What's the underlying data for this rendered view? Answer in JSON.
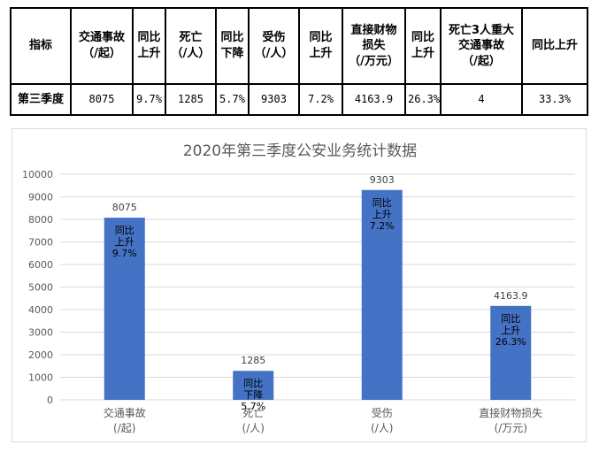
{
  "table": {
    "headers": [
      "指标",
      "交通事故\n（/起）",
      "同比\n上升",
      "死亡\n（/人）",
      "同比\n下降",
      "受伤\n（/人）",
      "同比\n上升",
      "直接财物\n损失\n（/万元）",
      "同比\n上升",
      "死亡3人重大\n交通事故\n（/起）",
      "同比上升"
    ],
    "row": [
      "第三季度",
      "8075",
      "9.7%",
      "1285",
      "5.7%",
      "9303",
      "7.2%",
      "4163.9",
      "26.3%",
      "4",
      "33.3%"
    ]
  },
  "chart_data": {
    "type": "bar",
    "title": "2020年第三季度公安业务统计数据",
    "categories": [
      "交通事故\n(/起)",
      "死亡\n(/人)",
      "受伤\n(/人)",
      "直接财物损失\n(/万元)"
    ],
    "values": [
      8075,
      1285,
      9303,
      4163.9
    ],
    "value_labels": [
      "8075",
      "1285",
      "9303",
      "4163.9"
    ],
    "bar_annotations": [
      "同比\n上升\n9.7%",
      "同比\n下降\n5.7%",
      "同比\n上升\n7.2%",
      "同比\n上升\n26.3%"
    ],
    "ylim": [
      0,
      10000
    ],
    "yticks": [
      0,
      1000,
      2000,
      3000,
      4000,
      5000,
      6000,
      7000,
      8000,
      9000,
      10000
    ],
    "grid": true,
    "legend": "none",
    "bar_color": "#4472C4",
    "grid_color": "#d9d9d9",
    "tick_color": "#595959"
  }
}
